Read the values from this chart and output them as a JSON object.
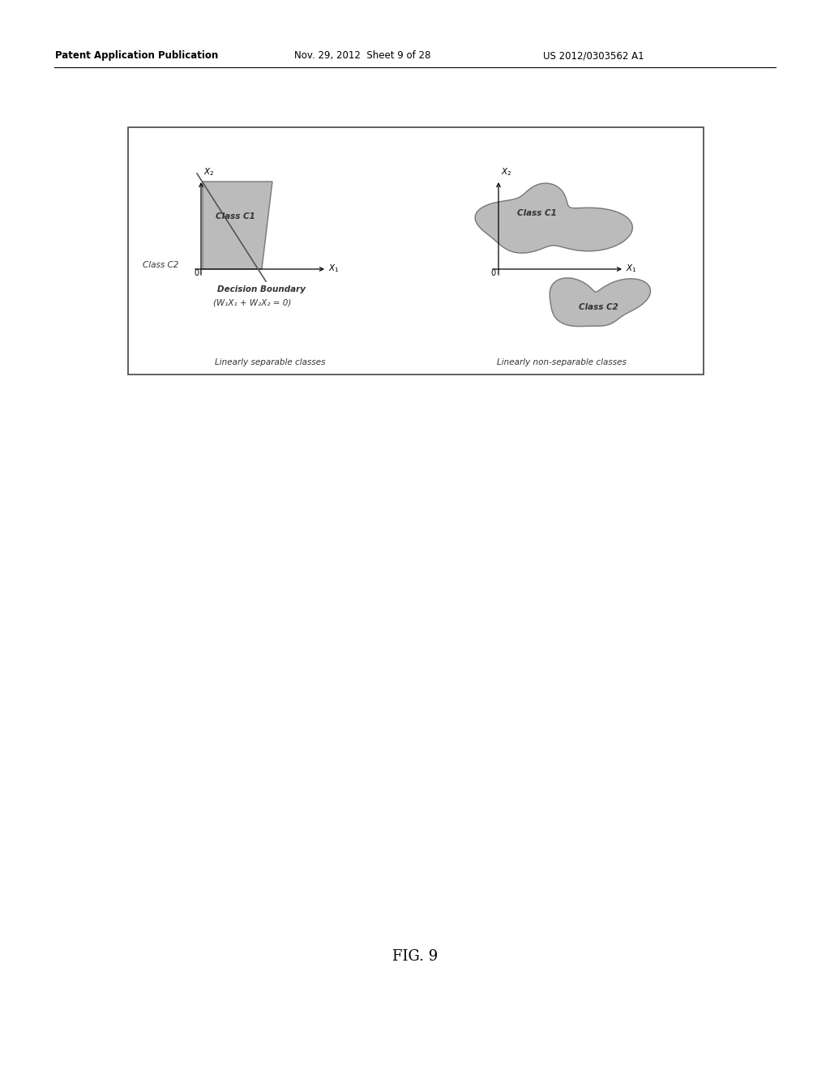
{
  "bg_color": "#ffffff",
  "header_text": "Patent Application Publication",
  "header_date": "Nov. 29, 2012  Sheet 9 of 28",
  "header_patent": "US 2012/0303562 A1",
  "fig_label": "FIG. 9",
  "shape_color": "#b0b0b0",
  "shape_edge": "#666666",
  "left_title": "Linearly separable classes",
  "right_title": "Linearly non-separable classes",
  "decision_boundary_line1": "Decision Boundary",
  "decision_boundary_line2": "(W₁X₁ + W₂X₂ = 0)"
}
